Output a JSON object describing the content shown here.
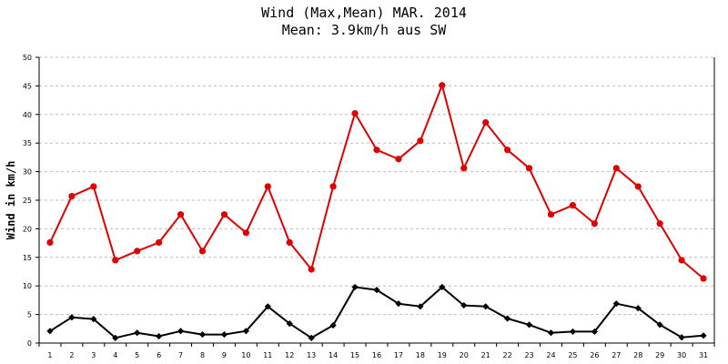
{
  "chart_data": {
    "type": "line",
    "title": "Wind (Max,Mean) MAR. 2014",
    "subtitle": "Mean: 3.9km/h aus SW",
    "xlabel": "",
    "ylabel": "Wind in km/h",
    "ylim": [
      0,
      50
    ],
    "yticks": [
      0,
      5,
      10,
      15,
      20,
      25,
      30,
      35,
      40,
      45,
      50
    ],
    "grid": true,
    "categories": [
      "1",
      "2",
      "3",
      "4",
      "5",
      "6",
      "7",
      "8",
      "9",
      "10",
      "11",
      "12",
      "13",
      "14",
      "15",
      "16",
      "17",
      "18",
      "19",
      "20",
      "21",
      "22",
      "23",
      "24",
      "25",
      "26",
      "27",
      "28",
      "29",
      "30",
      "31"
    ],
    "series": [
      {
        "color": "#e00000",
        "marker": "circle",
        "values": [
          17.6,
          25.7,
          27.4,
          14.5,
          16.1,
          17.6,
          22.5,
          16.1,
          22.5,
          19.3,
          27.4,
          17.6,
          12.9,
          27.4,
          40.2,
          33.8,
          32.2,
          35.4,
          45.1,
          30.6,
          38.6,
          33.8,
          30.6,
          22.5,
          24.1,
          20.9,
          30.6,
          27.4,
          20.9,
          14.5,
          11.3
        ]
      },
      {
        "color": "#000000",
        "marker": "diamond",
        "values": [
          2.1,
          4.5,
          4.2,
          0.9,
          1.8,
          1.2,
          2.1,
          1.5,
          1.5,
          2.1,
          6.4,
          3.4,
          0.9,
          3.1,
          9.8,
          9.3,
          6.9,
          6.4,
          9.8,
          6.6,
          6.4,
          4.3,
          3.2,
          1.8,
          2.0,
          2.0,
          6.9,
          6.1,
          3.2,
          1.0,
          1.3
        ]
      }
    ]
  }
}
